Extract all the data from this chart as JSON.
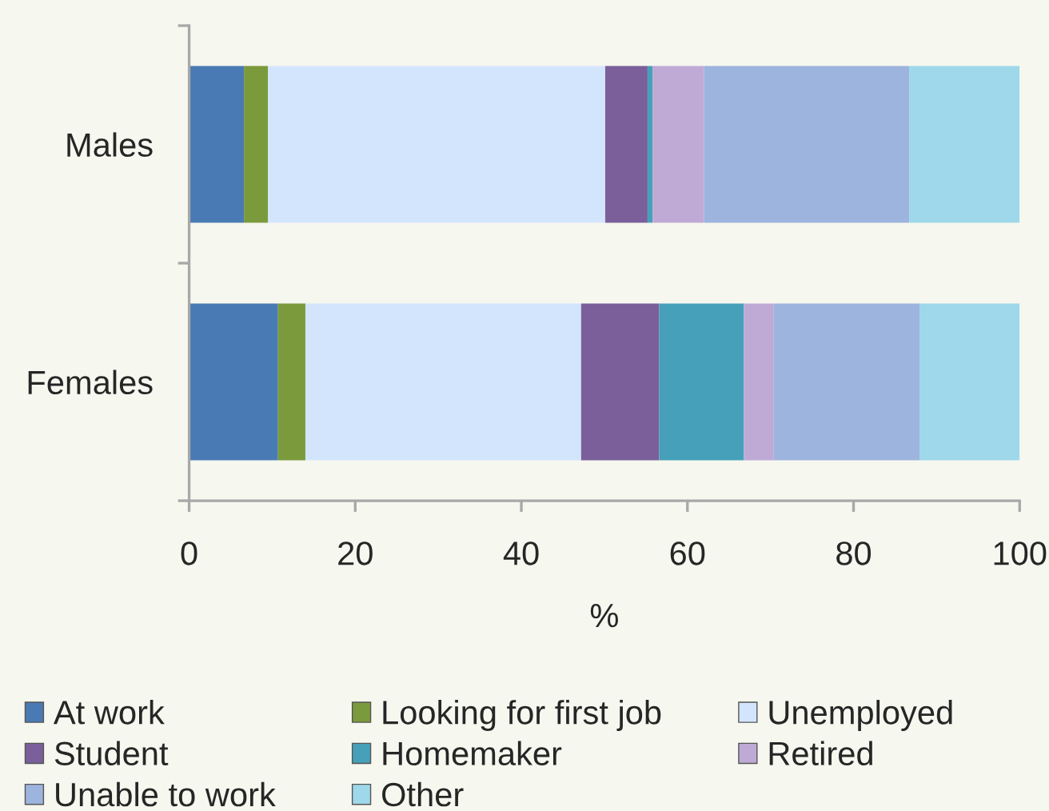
{
  "chart_data": {
    "type": "bar",
    "orientation": "horizontal",
    "stacked": true,
    "categories": [
      "Males",
      "Females"
    ],
    "xlabel": "%",
    "xlim": [
      0,
      100
    ],
    "xticks": [
      0,
      20,
      40,
      60,
      80,
      100
    ],
    "grid": false,
    "legend": "bottom",
    "series": [
      {
        "name": "At work",
        "color": "#4a7ab4",
        "values": [
          6.6,
          10.7
        ]
      },
      {
        "name": "Looking for first job",
        "color": "#7b9a3c",
        "values": [
          2.9,
          3.3
        ]
      },
      {
        "name": "Unemployed",
        "color": "#d3e5fc",
        "values": [
          40.6,
          33.2
        ]
      },
      {
        "name": "Student",
        "color": "#7a5f9b",
        "values": [
          5.1,
          9.4
        ]
      },
      {
        "name": "Homemaker",
        "color": "#46a0b9",
        "values": [
          0.6,
          10.2
        ]
      },
      {
        "name": "Retired",
        "color": "#bfaad6",
        "values": [
          6.2,
          3.6
        ]
      },
      {
        "name": "Unable to work",
        "color": "#9db4de",
        "values": [
          24.7,
          17.6
        ]
      },
      {
        "name": "Other",
        "color": "#9ed8ea",
        "values": [
          13.3,
          12.0
        ]
      }
    ]
  }
}
